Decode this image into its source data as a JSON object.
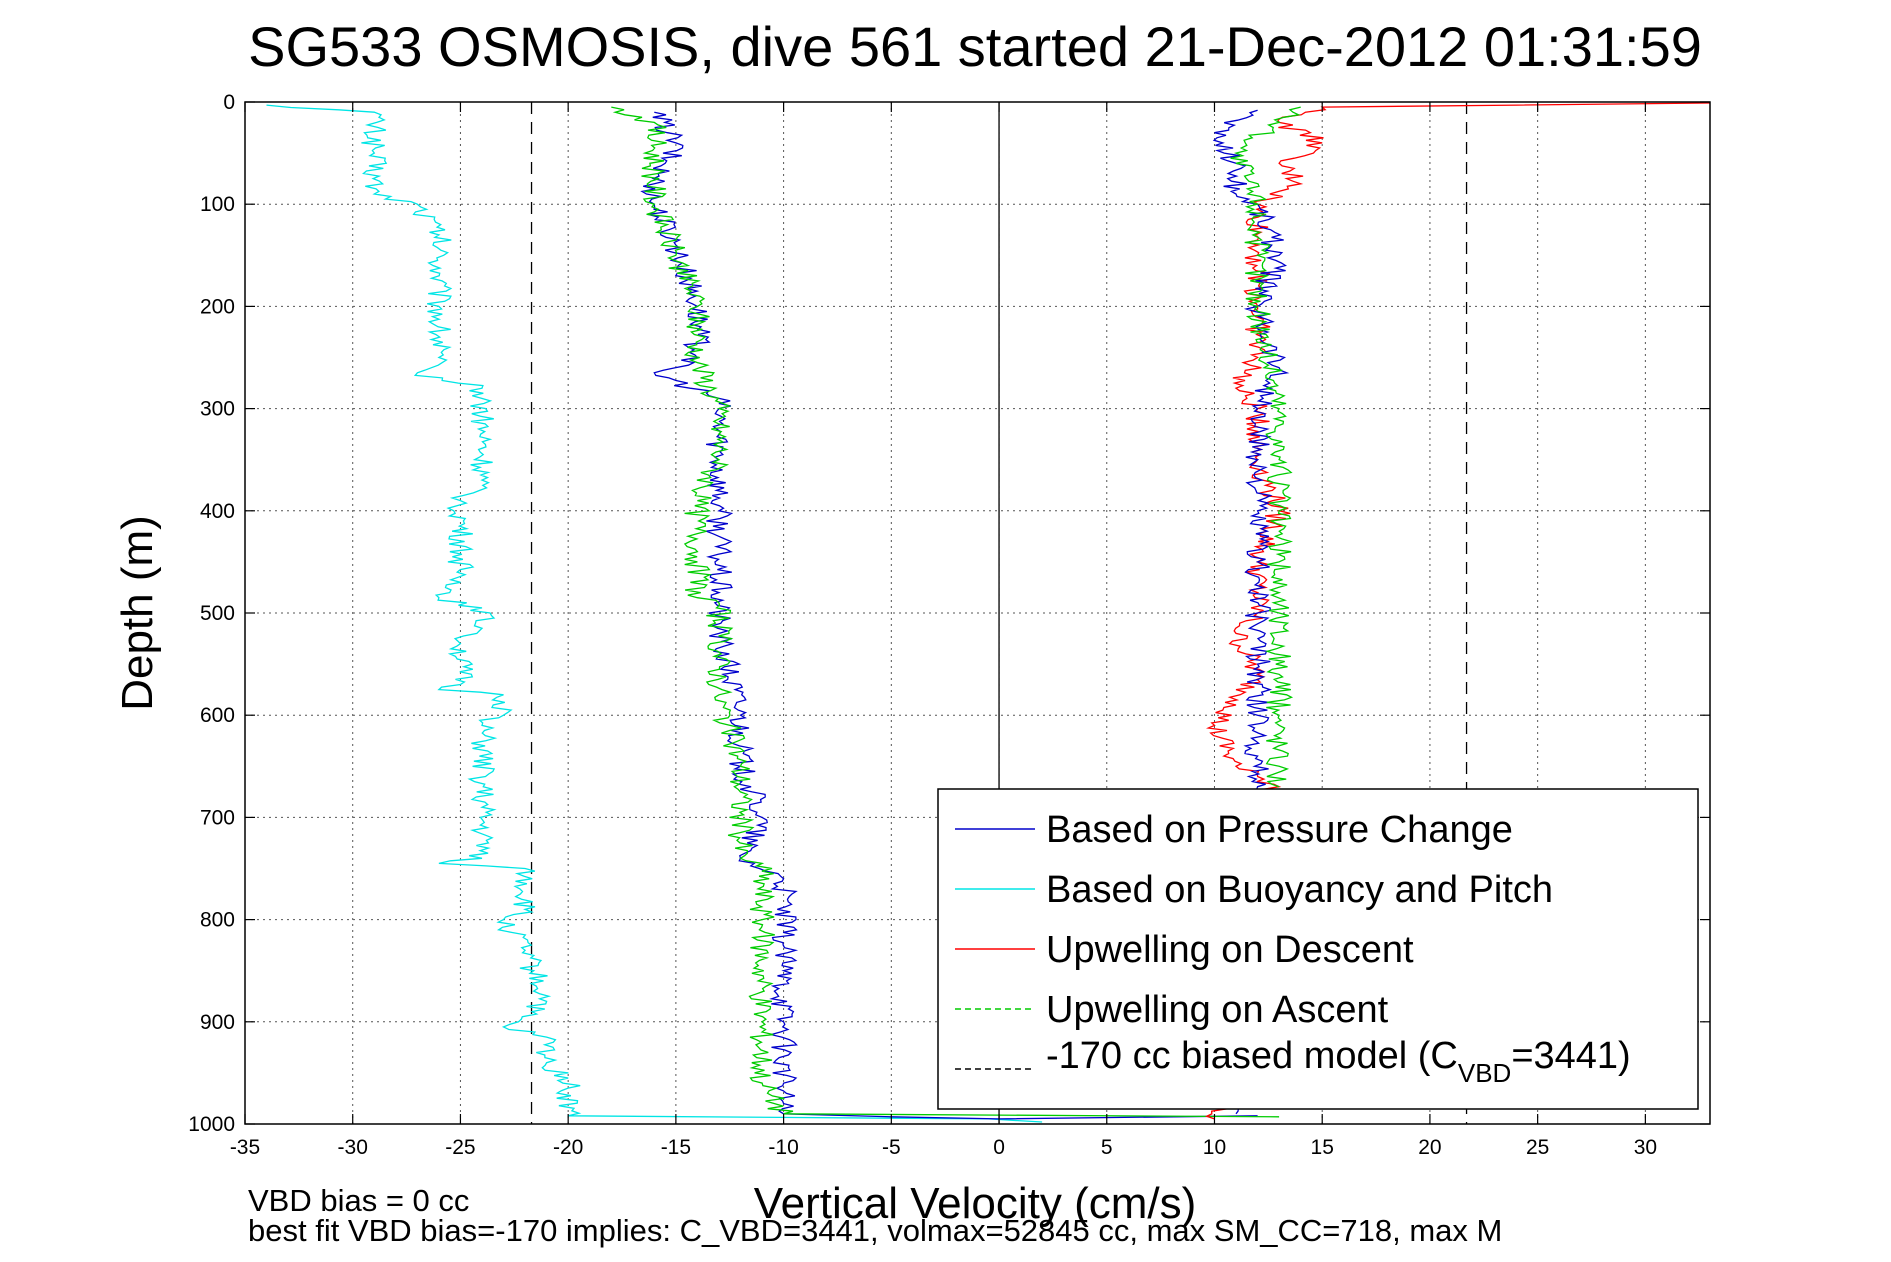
{
  "chart_data": {
    "type": "line",
    "title": "SG533 OSMOSIS, dive 561 started 21-Dec-2012 01:31:59",
    "xlabel": "Vertical Velocity (cm/s)",
    "ylabel": "Depth (m)",
    "xlim": [
      -35,
      33
    ],
    "ylim": [
      1000,
      0
    ],
    "y_inverted": true,
    "grid": true,
    "x_ticks": [
      "-35",
      "-30",
      "-25",
      "-20",
      "-15",
      "-10",
      "-5",
      "0",
      "5",
      "10",
      "15",
      "20",
      "25",
      "30"
    ],
    "y_ticks": [
      "0",
      "100",
      "200",
      "300",
      "400",
      "500",
      "600",
      "700",
      "800",
      "900",
      "1000"
    ],
    "legend_position": "bottom-right",
    "legend": [
      {
        "label": "Based on Pressure Change",
        "color": "#0000cc",
        "style": "solid"
      },
      {
        "label": "Based on Buoyancy and Pitch",
        "color": "#00e5e5",
        "style": "solid"
      },
      {
        "label": "Upwelling on Descent",
        "color": "#ff0000",
        "style": "solid"
      },
      {
        "label": "Upwelling on Ascent",
        "color": "#00cc00",
        "style": "dashed"
      },
      {
        "label_main": "-170 cc biased model (C",
        "label_sub": "VBD",
        "label_tail": "=3441)",
        "color": "#000000",
        "style": "dashed"
      }
    ],
    "model_lines_x": [
      -21.7,
      21.7
    ],
    "zero_line_x": 0,
    "series": [
      {
        "color": "#00e5e5",
        "points": [
          [
            -34,
            3
          ],
          [
            -29,
            10
          ],
          [
            -29,
            50
          ],
          [
            -29,
            90
          ],
          [
            -27,
            100
          ],
          [
            -26,
            130
          ],
          [
            -26,
            200
          ],
          [
            -26,
            250
          ],
          [
            -27,
            265
          ],
          [
            -24,
            280
          ],
          [
            -24,
            370
          ],
          [
            -25,
            390
          ],
          [
            -25,
            470
          ],
          [
            -26,
            485
          ],
          [
            -24,
            495
          ],
          [
            -24,
            515
          ],
          [
            -25,
            530
          ],
          [
            -25,
            570
          ],
          [
            -26,
            575
          ],
          [
            -23,
            580
          ],
          [
            -23,
            600
          ],
          [
            -24,
            610
          ],
          [
            -24,
            740
          ],
          [
            -26,
            745
          ],
          [
            -22,
            750
          ],
          [
            -22,
            790
          ],
          [
            -23,
            800
          ],
          [
            -22,
            830
          ],
          [
            -21,
            880
          ],
          [
            -23,
            905
          ],
          [
            -21,
            915
          ],
          [
            -21,
            940
          ],
          [
            -20,
            955
          ],
          [
            -20,
            992
          ],
          [
            -0.5,
            995
          ],
          [
            2,
            998
          ]
        ]
      },
      {
        "color": "#0000cc",
        "points": [
          [
            -16,
            10
          ],
          [
            -15,
            40
          ],
          [
            -16,
            80
          ],
          [
            -16,
            100
          ],
          [
            -15,
            140
          ],
          [
            -14,
            200
          ],
          [
            -14,
            250
          ],
          [
            -16,
            265
          ],
          [
            -13,
            290
          ],
          [
            -13,
            300
          ],
          [
            -13,
            400
          ],
          [
            -13,
            480
          ],
          [
            -13,
            520
          ],
          [
            -12,
            600
          ],
          [
            -12,
            650
          ],
          [
            -11,
            700
          ],
          [
            -12,
            740
          ],
          [
            -10,
            760
          ],
          [
            -10,
            850
          ],
          [
            -10,
            900
          ],
          [
            -10,
            960
          ],
          [
            -10,
            990
          ],
          [
            -5,
            993
          ],
          [
            0,
            995
          ],
          [
            12,
            992
          ]
        ]
      },
      {
        "color": "#00cc00",
        "points": [
          [
            -18,
            5
          ],
          [
            -16,
            20
          ],
          [
            -16,
            100
          ],
          [
            -15,
            150
          ],
          [
            -14,
            200
          ],
          [
            -14,
            255
          ],
          [
            -13,
            300
          ],
          [
            -13,
            350
          ],
          [
            -14,
            390
          ],
          [
            -14,
            450
          ],
          [
            -14,
            485
          ],
          [
            -13,
            490
          ],
          [
            -13,
            580
          ],
          [
            -12,
            650
          ],
          [
            -12,
            740
          ],
          [
            -11,
            745
          ],
          [
            -11,
            800
          ],
          [
            -11,
            900
          ],
          [
            -11,
            960
          ],
          [
            -10,
            990
          ],
          [
            13,
            993
          ]
        ]
      },
      {
        "color": "#ff0000",
        "points": [
          [
            33,
            1
          ],
          [
            15,
            5
          ],
          [
            13,
            20
          ],
          [
            15,
            40
          ],
          [
            13,
            60
          ],
          [
            14,
            80
          ],
          [
            12,
            100
          ],
          [
            12,
            150
          ],
          [
            12,
            200
          ],
          [
            12,
            250
          ],
          [
            11,
            280
          ],
          [
            12,
            300
          ],
          [
            12,
            350
          ],
          [
            13,
            400
          ],
          [
            12,
            450
          ],
          [
            12,
            500
          ],
          [
            11,
            520
          ],
          [
            12,
            560
          ],
          [
            11,
            590
          ],
          [
            10,
            610
          ],
          [
            11,
            650
          ],
          [
            12,
            660
          ],
          [
            13,
            670
          ],
          [
            12,
            675
          ],
          [
            10,
            995
          ]
        ]
      },
      {
        "color": "#0000cc",
        "points": [
          [
            12,
            8
          ],
          [
            10,
            30
          ],
          [
            11,
            60
          ],
          [
            11,
            90
          ],
          [
            12,
            100
          ],
          [
            13,
            150
          ],
          [
            12,
            200
          ],
          [
            13,
            260
          ],
          [
            12,
            300
          ],
          [
            12,
            350
          ],
          [
            12,
            400
          ],
          [
            12,
            450
          ],
          [
            12,
            500
          ],
          [
            12,
            550
          ],
          [
            12,
            600
          ],
          [
            12,
            640
          ],
          [
            12,
            670
          ],
          [
            11,
            990
          ]
        ]
      },
      {
        "color": "#00cc00",
        "points": [
          [
            14,
            5
          ],
          [
            13,
            20
          ],
          [
            11,
            50
          ],
          [
            12,
            100
          ],
          [
            12,
            150
          ],
          [
            12,
            200
          ],
          [
            13,
            300
          ],
          [
            13,
            350
          ],
          [
            13,
            400
          ],
          [
            13,
            450
          ],
          [
            13,
            500
          ],
          [
            13,
            560
          ],
          [
            13,
            600
          ],
          [
            13,
            650
          ],
          [
            13,
            670
          ]
        ]
      }
    ]
  },
  "footer": {
    "line1": "VBD bias = 0 cc",
    "line2": "best fit VBD bias=-170 implies: C_VBD=3441, volmax=52845 cc, max SM_CC=718, max M"
  }
}
